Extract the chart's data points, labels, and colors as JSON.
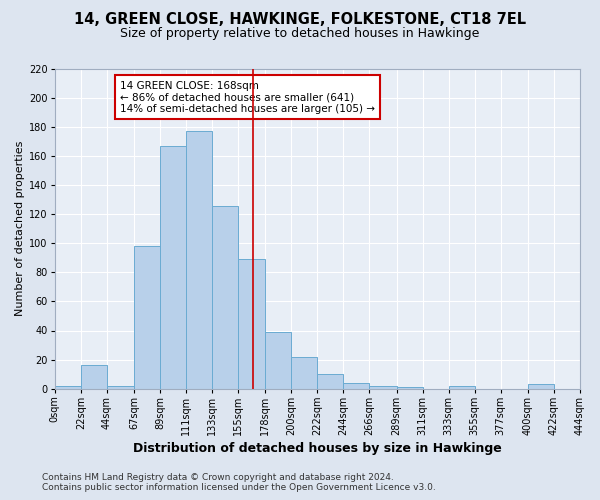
{
  "title": "14, GREEN CLOSE, HAWKINGE, FOLKESTONE, CT18 7EL",
  "subtitle": "Size of property relative to detached houses in Hawkinge",
  "xlabel": "Distribution of detached houses by size in Hawkinge",
  "ylabel": "Number of detached properties",
  "bin_edges": [
    0,
    22,
    44,
    67,
    89,
    111,
    133,
    155,
    178,
    200,
    222,
    244,
    266,
    289,
    311,
    333,
    355,
    377,
    400,
    422,
    444
  ],
  "bar_heights": [
    2,
    16,
    2,
    98,
    167,
    177,
    126,
    89,
    39,
    22,
    10,
    4,
    2,
    1,
    0,
    2,
    0,
    0,
    3,
    0
  ],
  "bar_color": "#b8d0ea",
  "bar_edge_color": "#6aabd2",
  "vline_x": 168,
  "vline_color": "#cc0000",
  "annotation_text": "14 GREEN CLOSE: 168sqm\n← 86% of detached houses are smaller (641)\n14% of semi-detached houses are larger (105) →",
  "annotation_box_color": "white",
  "annotation_box_edge_color": "#cc0000",
  "ylim": [
    0,
    220
  ],
  "yticks": [
    0,
    20,
    40,
    60,
    80,
    100,
    120,
    140,
    160,
    180,
    200,
    220
  ],
  "tick_labels": [
    "0sqm",
    "22sqm",
    "44sqm",
    "67sqm",
    "89sqm",
    "111sqm",
    "133sqm",
    "155sqm",
    "178sqm",
    "200sqm",
    "222sqm",
    "244sqm",
    "266sqm",
    "289sqm",
    "311sqm",
    "333sqm",
    "355sqm",
    "377sqm",
    "400sqm",
    "422sqm",
    "444sqm"
  ],
  "background_color": "#dde5f0",
  "plot_bg_color": "#e8eef6",
  "footnote": "Contains HM Land Registry data © Crown copyright and database right 2024.\nContains public sector information licensed under the Open Government Licence v3.0.",
  "title_fontsize": 10.5,
  "subtitle_fontsize": 9,
  "xlabel_fontsize": 9,
  "ylabel_fontsize": 8,
  "tick_fontsize": 7,
  "footnote_fontsize": 6.5
}
